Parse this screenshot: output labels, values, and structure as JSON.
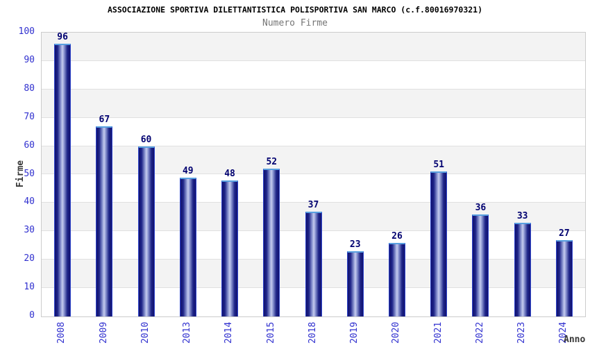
{
  "chart_data": {
    "type": "bar",
    "title": "ASSOCIAZIONE SPORTIVA DILETTANTISTICA POLISPORTIVA SAN MARCO (c.f.80016970321)",
    "subtitle": "Numero Firme",
    "xlabel": "Anno",
    "ylabel": "Firme",
    "categories": [
      "2008",
      "2009",
      "2010",
      "2013",
      "2014",
      "2015",
      "2018",
      "2019",
      "2020",
      "2021",
      "2022",
      "2023",
      "2024"
    ],
    "values": [
      96,
      67,
      60,
      49,
      48,
      52,
      37,
      23,
      26,
      51,
      36,
      33,
      27
    ],
    "ylim": [
      0,
      100
    ],
    "ytick_step": 10,
    "yticks": [
      0,
      10,
      20,
      30,
      40,
      50,
      60,
      70,
      80,
      90,
      100
    ],
    "grid": true,
    "legend": "none",
    "colors": {
      "tick_label": "#3030cf",
      "value_label": "#000070",
      "axis_title": "#383838",
      "title": "#000000",
      "subtitle": "#757575",
      "band_shade": "#f3f3f3",
      "band_light": "#ffffff",
      "grid_line": "#e0e0e0",
      "plot_border": "#cccccc",
      "bar_dark": "#12126f",
      "bar_mid": "#1d2488",
      "bar_light": "#c6ccee",
      "bar_border": "#2e45cc",
      "bar_border_top": "#58a0e0",
      "background": "#ffffff"
    }
  }
}
